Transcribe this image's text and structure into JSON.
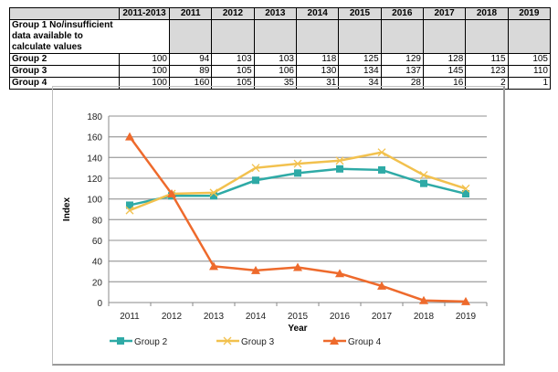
{
  "table": {
    "headers": [
      "",
      "2011-2013",
      "2011",
      "2012",
      "2013",
      "2014",
      "2015",
      "2016",
      "2017",
      "2018",
      "2019"
    ],
    "group1_label": "Group 1 No/insufficient data available to calculate values",
    "rows": [
      {
        "label": "Group 2",
        "values": [
          "100",
          "94",
          "103",
          "103",
          "118",
          "125",
          "129",
          "128",
          "115",
          "105"
        ]
      },
      {
        "label": "Group 3",
        "values": [
          "100",
          "89",
          "105",
          "106",
          "130",
          "134",
          "137",
          "145",
          "123",
          "110"
        ]
      },
      {
        "label": "Group 4",
        "values": [
          "100",
          "160",
          "105",
          "35",
          "31",
          "34",
          "28",
          "16",
          "2",
          "1"
        ]
      }
    ]
  },
  "chart_data": {
    "type": "line",
    "categories": [
      "2011",
      "2012",
      "2013",
      "2014",
      "2015",
      "2016",
      "2017",
      "2018",
      "2019"
    ],
    "xlabel": "Year",
    "ylabel": "Index",
    "ylim": [
      0,
      180
    ],
    "yticks": [
      0,
      20,
      40,
      60,
      80,
      100,
      120,
      140,
      160,
      180
    ],
    "grid": true,
    "legend": "bottom",
    "series": [
      {
        "name": "Group 2",
        "values": [
          94,
          103,
          103,
          118,
          125,
          129,
          128,
          115,
          105
        ],
        "color": "#2eaaa6",
        "marker": "square"
      },
      {
        "name": "Group 3",
        "values": [
          89,
          105,
          106,
          130,
          134,
          137,
          145,
          123,
          110
        ],
        "color": "#f2c14e",
        "marker": "x"
      },
      {
        "name": "Group 4",
        "values": [
          160,
          105,
          35,
          31,
          34,
          28,
          16,
          2,
          1
        ],
        "color": "#ee6a2c",
        "marker": "triangle"
      }
    ]
  }
}
